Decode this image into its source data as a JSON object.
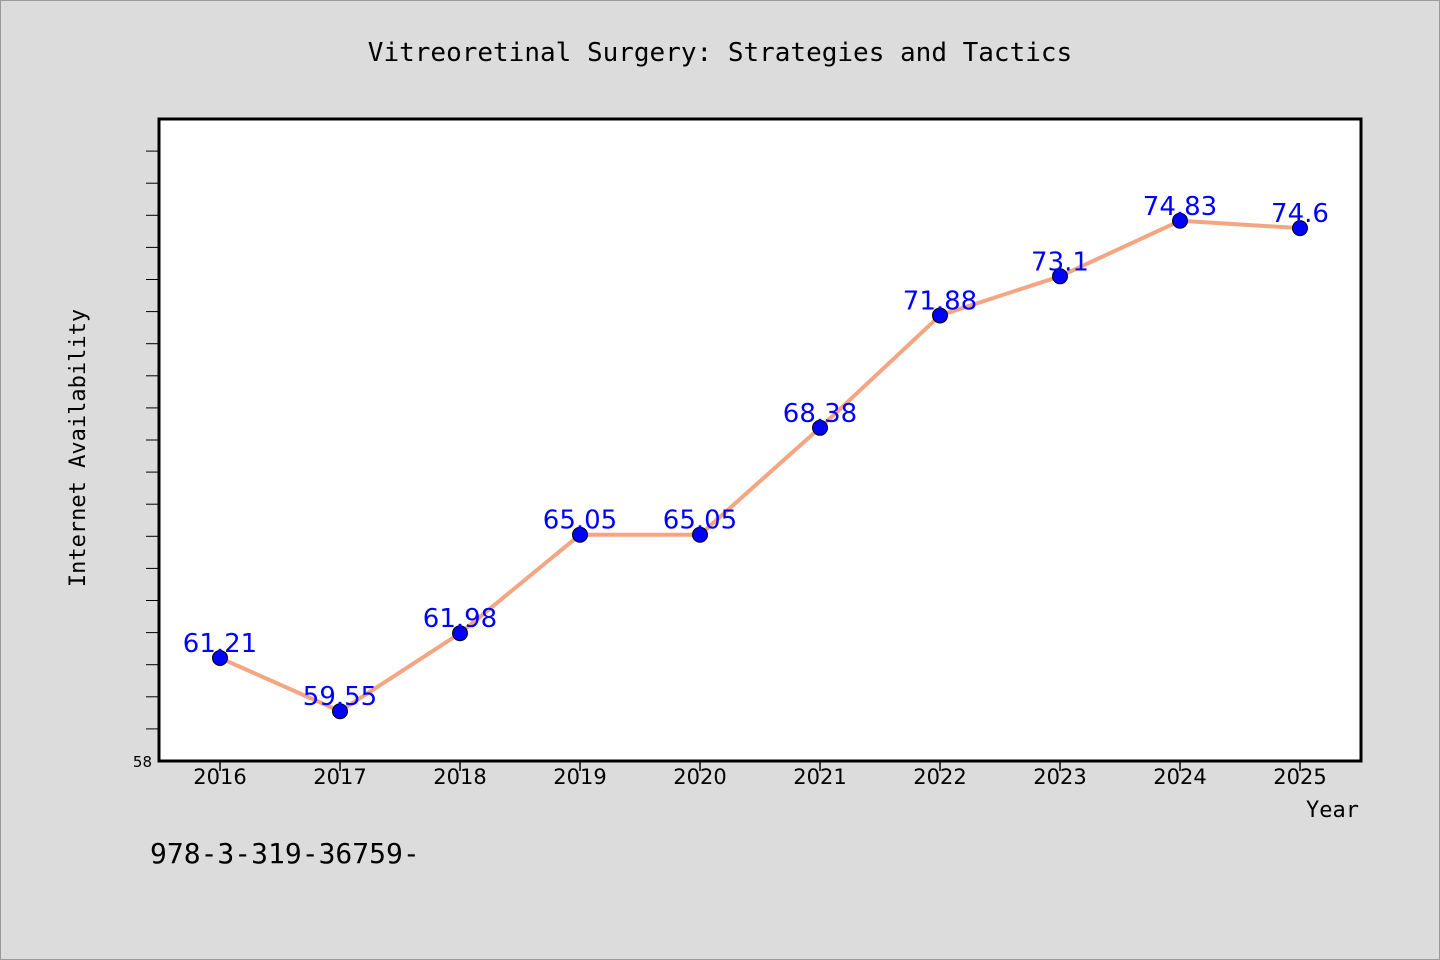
{
  "chart_data": {
    "type": "line",
    "title": "Vitreoretinal Surgery: Strategies and Tactics",
    "xlabel": "Year",
    "ylabel": "Internet Availability",
    "categories": [
      "2016",
      "2017",
      "2018",
      "2019",
      "2020",
      "2021",
      "2022",
      "2023",
      "2024",
      "2025"
    ],
    "series": [
      {
        "values": [
          61.21,
          59.55,
          61.98,
          65.05,
          65.05,
          68.38,
          71.88,
          73.1,
          74.83,
          74.6
        ]
      }
    ],
    "data_labels": [
      "61.21",
      "59.55",
      "61.98",
      "65.05",
      "65.05",
      "68.38",
      "71.88",
      "73.1",
      "74.83",
      "74.6"
    ],
    "y_tick_labels": [
      "58"
    ],
    "ylim": [
      58,
      78
    ],
    "y_minor_step": 1,
    "grid": false,
    "legend": "none",
    "colors": {
      "line": "#f4a582",
      "marker": "#0000ff",
      "data_label": "#0000ff",
      "axis": "#000000",
      "background": "#dcdcdc",
      "plot_bg": "#ffffff"
    }
  },
  "footer": {
    "text": "978-3-319-36759-"
  }
}
